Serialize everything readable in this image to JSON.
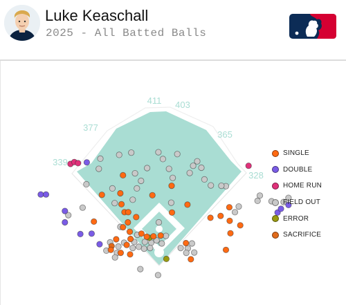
{
  "header": {
    "player_name": "Luke Keaschall",
    "subtitle": "2025 - All Batted Balls"
  },
  "colors": {
    "field_fill": "#a9ddd3",
    "field_line": "#ffffff",
    "distance_label": "#a9ddd3",
    "single": "#ff6a13",
    "double": "#7a5ce6",
    "home_run": "#e0317a",
    "field_out": "#c9c9c9",
    "error": "#9a9a10",
    "sacrifice": "#e06a1a",
    "mlb_blue": "#0c2c56",
    "mlb_red": "#d50032"
  },
  "chart_data": {
    "type": "scatter",
    "title": "2025 - All Batted Balls",
    "fence_distances": [
      {
        "label": "339",
        "side": "left"
      },
      {
        "label": "377",
        "side": "left-center"
      },
      {
        "label": "411",
        "side": "center-left"
      },
      {
        "label": "403",
        "side": "center-right"
      },
      {
        "label": "365",
        "side": "right-center"
      },
      {
        "label": "328",
        "side": "right"
      }
    ],
    "legend": [
      {
        "key": "single",
        "label": "SINGLE"
      },
      {
        "key": "double",
        "label": "DOUBLE"
      },
      {
        "key": "home_run",
        "label": "HOME RUN"
      },
      {
        "key": "field_out",
        "label": "FIELD OUT"
      },
      {
        "key": "error",
        "label": "ERROR"
      },
      {
        "key": "sacrifice",
        "label": "SACRIFICE"
      }
    ],
    "legend_position": "right",
    "spray_coordinate_units": "feet from home plate; x positive toward right field, y toward center field",
    "points": [
      {
        "x": -235,
        "y": 233,
        "type": "home_run"
      },
      {
        "x": -225,
        "y": 238,
        "type": "home_run"
      },
      {
        "x": -215,
        "y": 235,
        "type": "home_run"
      },
      {
        "x": 237,
        "y": 228,
        "type": "home_run"
      },
      {
        "x": -314,
        "y": 152,
        "type": "double"
      },
      {
        "x": -300,
        "y": 152,
        "type": "double"
      },
      {
        "x": -250,
        "y": 108,
        "type": "double"
      },
      {
        "x": -250,
        "y": 78,
        "type": "double"
      },
      {
        "x": -179,
        "y": 48,
        "type": "double"
      },
      {
        "x": -209,
        "y": 47,
        "type": "double"
      },
      {
        "x": -192,
        "y": 237,
        "type": "double"
      },
      {
        "x": 314,
        "y": 104,
        "type": "double"
      },
      {
        "x": 343,
        "y": 124,
        "type": "double"
      },
      {
        "x": 323,
        "y": 114,
        "type": "double"
      },
      {
        "x": -158,
        "y": 20,
        "type": "double"
      },
      {
        "x": -96,
        "y": 203,
        "type": "single"
      },
      {
        "x": -152,
        "y": 151,
        "type": "single"
      },
      {
        "x": -103,
        "y": 155,
        "type": "single"
      },
      {
        "x": -100,
        "y": 126,
        "type": "single"
      },
      {
        "x": -92,
        "y": 105,
        "type": "single"
      },
      {
        "x": -61,
        "y": 92,
        "type": "single"
      },
      {
        "x": -18,
        "y": 150,
        "type": "single"
      },
      {
        "x": 33,
        "y": 175,
        "type": "single"
      },
      {
        "x": 34,
        "y": 104,
        "type": "single"
      },
      {
        "x": 75,
        "y": 125,
        "type": "single"
      },
      {
        "x": 136,
        "y": 90,
        "type": "single"
      },
      {
        "x": 186,
        "y": 118,
        "type": "single"
      },
      {
        "x": 163,
        "y": 95,
        "type": "single"
      },
      {
        "x": 187,
        "y": 82,
        "type": "single"
      },
      {
        "x": 215,
        "y": 70,
        "type": "single"
      },
      {
        "x": 189,
        "y": 49,
        "type": "single"
      },
      {
        "x": 177,
        "y": 5,
        "type": "single"
      },
      {
        "x": -173,
        "y": 80,
        "type": "single"
      },
      {
        "x": -82,
        "y": 105,
        "type": "single"
      },
      {
        "x": -83,
        "y": 78,
        "type": "single"
      },
      {
        "x": -96,
        "y": 65,
        "type": "single"
      },
      {
        "x": -78,
        "y": 53,
        "type": "single"
      },
      {
        "x": -47,
        "y": 48,
        "type": "single"
      },
      {
        "x": -33,
        "y": 40,
        "type": "single"
      },
      {
        "x": -15,
        "y": 41,
        "type": "single"
      },
      {
        "x": 4,
        "y": 43,
        "type": "single"
      },
      {
        "x": -76,
        "y": 34,
        "type": "single"
      },
      {
        "x": -114,
        "y": 33,
        "type": "single"
      },
      {
        "x": -86,
        "y": 18,
        "type": "single"
      },
      {
        "x": -128,
        "y": 5,
        "type": "single"
      },
      {
        "x": -102,
        "y": -3,
        "type": "single"
      },
      {
        "x": -77,
        "y": -7,
        "type": "single"
      },
      {
        "x": 84,
        "y": -20,
        "type": "single"
      },
      {
        "x": 71,
        "y": 23,
        "type": "single"
      },
      {
        "x": -26,
        "y": 37,
        "type": "error"
      },
      {
        "x": 19,
        "y": -19,
        "type": "error"
      },
      {
        "x": -126,
        "y": 15,
        "type": "sacrifice"
      },
      {
        "x": -160,
        "y": 220,
        "type": "field_out"
      },
      {
        "x": -106,
        "y": 257,
        "type": "field_out"
      },
      {
        "x": -74,
        "y": 263,
        "type": "field_out"
      },
      {
        "x": -2,
        "y": 264,
        "type": "field_out"
      },
      {
        "x": 48,
        "y": 259,
        "type": "field_out"
      },
      {
        "x": -156,
        "y": 247,
        "type": "field_out"
      },
      {
        "x": -32,
        "y": 222,
        "type": "field_out"
      },
      {
        "x": 10,
        "y": 246,
        "type": "field_out"
      },
      {
        "x": 26,
        "y": 220,
        "type": "field_out"
      },
      {
        "x": 90,
        "y": 228,
        "type": "field_out"
      },
      {
        "x": 101,
        "y": 240,
        "type": "field_out"
      },
      {
        "x": 112,
        "y": 223,
        "type": "field_out"
      },
      {
        "x": -193,
        "y": 179,
        "type": "field_out"
      },
      {
        "x": -124,
        "y": 168,
        "type": "field_out"
      },
      {
        "x": -64,
        "y": 208,
        "type": "field_out"
      },
      {
        "x": -48,
        "y": 188,
        "type": "field_out"
      },
      {
        "x": 36,
        "y": 196,
        "type": "field_out"
      },
      {
        "x": 81,
        "y": 209,
        "type": "field_out"
      },
      {
        "x": 120,
        "y": 192,
        "type": "field_out"
      },
      {
        "x": 137,
        "y": 176,
        "type": "field_out"
      },
      {
        "x": -59,
        "y": 168,
        "type": "field_out"
      },
      {
        "x": 177,
        "y": 174,
        "type": "field_out"
      },
      {
        "x": 211,
        "y": 120,
        "type": "field_out"
      },
      {
        "x": 201,
        "y": 105,
        "type": "field_out"
      },
      {
        "x": 261,
        "y": 135,
        "type": "field_out"
      },
      {
        "x": 298,
        "y": 134,
        "type": "field_out"
      },
      {
        "x": 330,
        "y": 132,
        "type": "field_out"
      },
      {
        "x": 267,
        "y": 149,
        "type": "field_out"
      },
      {
        "x": 343,
        "y": 143,
        "type": "field_out"
      },
      {
        "x": 165,
        "y": 175,
        "type": "field_out"
      },
      {
        "x": -241,
        "y": 97,
        "type": "field_out"
      },
      {
        "x": -203,
        "y": 117,
        "type": "field_out"
      },
      {
        "x": -118,
        "y": 129,
        "type": "field_out"
      },
      {
        "x": -70,
        "y": 138,
        "type": "field_out"
      },
      {
        "x": 32,
        "y": 130,
        "type": "field_out"
      },
      {
        "x": -1,
        "y": 78,
        "type": "field_out"
      },
      {
        "x": -103,
        "y": 66,
        "type": "field_out"
      },
      {
        "x": -130,
        "y": 25,
        "type": "field_out"
      },
      {
        "x": -93,
        "y": 24,
        "type": "field_out"
      },
      {
        "x": -108,
        "y": 14,
        "type": "field_out"
      },
      {
        "x": -112,
        "y": -3,
        "type": "field_out"
      },
      {
        "x": -140,
        "y": 3,
        "type": "field_out"
      },
      {
        "x": -117,
        "y": -15,
        "type": "field_out"
      },
      {
        "x": -70,
        "y": 10,
        "type": "field_out"
      },
      {
        "x": -54,
        "y": 13,
        "type": "field_out"
      },
      {
        "x": -40,
        "y": 8,
        "type": "field_out"
      },
      {
        "x": -38,
        "y": 26,
        "type": "field_out"
      },
      {
        "x": -58,
        "y": 45,
        "type": "field_out"
      },
      {
        "x": -66,
        "y": 26,
        "type": "field_out"
      },
      {
        "x": -21,
        "y": 24,
        "type": "field_out"
      },
      {
        "x": -7,
        "y": 30,
        "type": "field_out"
      },
      {
        "x": 18,
        "y": 42,
        "type": "field_out"
      },
      {
        "x": 7,
        "y": 22,
        "type": "field_out"
      },
      {
        "x": -24,
        "y": 10,
        "type": "field_out"
      },
      {
        "x": 57,
        "y": 10,
        "type": "field_out"
      },
      {
        "x": 76,
        "y": 9,
        "type": "field_out"
      },
      {
        "x": 87,
        "y": 22,
        "type": "field_out"
      },
      {
        "x": 72,
        "y": -3,
        "type": "field_out"
      },
      {
        "x": 93,
        "y": -2,
        "type": "field_out"
      },
      {
        "x": -50,
        "y": -46,
        "type": "field_out"
      },
      {
        "x": -3,
        "y": -62,
        "type": "field_out"
      }
    ]
  }
}
